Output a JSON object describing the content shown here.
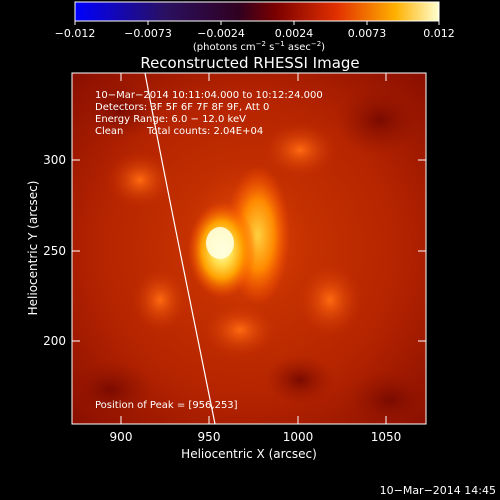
{
  "colorbar": {
    "ticks": [
      "−0.012",
      "−0.0073",
      "−0.0024",
      "0.0024",
      "0.0073",
      "0.012"
    ],
    "unit_prefix": "(photons cm",
    "unit_sup1": "−2",
    "unit_mid": " s",
    "unit_sup2": "−1",
    "unit_suffix": " asec",
    "unit_sup3": "−2",
    "unit_close": ")"
  },
  "title": "Reconstructed RHESSI Image",
  "info": {
    "time_range": "10−Mar−2014 10:11:04.000 to 10:12:24.000",
    "detectors": "Detectors: 3F 5F 6F 7F 8F 9F, Att 0",
    "energy": "Energy Range: 6.0 − 12.0 keV",
    "clean_method": "Clean",
    "total_counts": "Total counts: 2.04E+04",
    "peak": "Position of Peak = [956,253]"
  },
  "axes": {
    "xlabel": "Heliocentric X (arcsec)",
    "ylabel": "Heliocentric Y (arcsec)",
    "xticks": [
      "900",
      "950",
      "1000",
      "1050"
    ],
    "yticks": [
      "200",
      "250",
      "300"
    ],
    "xlim": [
      878,
      1068
    ],
    "ylim": [
      155,
      353
    ]
  },
  "footer_timestamp": "10−Mar−2014 14:45"
}
